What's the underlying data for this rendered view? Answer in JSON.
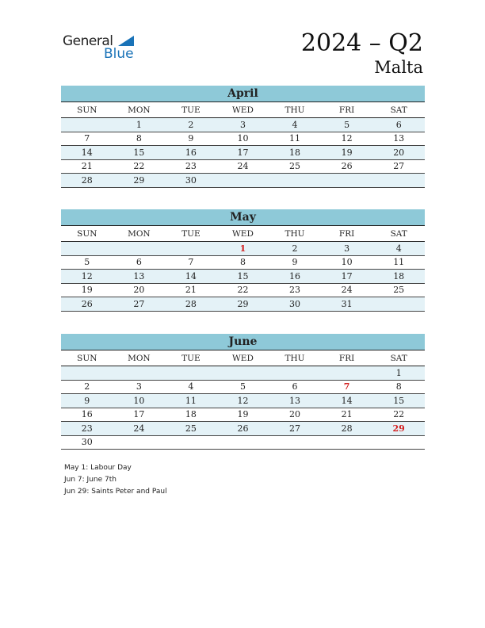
{
  "logo": {
    "line1": "General",
    "line2": "Blue"
  },
  "header": {
    "title": "2024 – Q2",
    "country": "Malta"
  },
  "weekdays": [
    "SUN",
    "MON",
    "TUE",
    "WED",
    "THU",
    "FRI",
    "SAT"
  ],
  "holiday_color": "#d32020",
  "months": [
    {
      "name": "April",
      "weeks": [
        [
          null,
          1,
          2,
          3,
          4,
          5,
          6
        ],
        [
          7,
          8,
          9,
          10,
          11,
          12,
          13
        ],
        [
          14,
          15,
          16,
          17,
          18,
          19,
          20
        ],
        [
          21,
          22,
          23,
          24,
          25,
          26,
          27
        ],
        [
          28,
          29,
          30,
          null,
          null,
          null,
          null
        ]
      ],
      "holidays": []
    },
    {
      "name": "May",
      "weeks": [
        [
          null,
          null,
          null,
          1,
          2,
          3,
          4
        ],
        [
          5,
          6,
          7,
          8,
          9,
          10,
          11
        ],
        [
          12,
          13,
          14,
          15,
          16,
          17,
          18
        ],
        [
          19,
          20,
          21,
          22,
          23,
          24,
          25
        ],
        [
          26,
          27,
          28,
          29,
          30,
          31,
          null
        ]
      ],
      "holidays": [
        1
      ]
    },
    {
      "name": "June",
      "weeks": [
        [
          null,
          null,
          null,
          null,
          null,
          null,
          1
        ],
        [
          2,
          3,
          4,
          5,
          6,
          7,
          8
        ],
        [
          9,
          10,
          11,
          12,
          13,
          14,
          15
        ],
        [
          16,
          17,
          18,
          19,
          20,
          21,
          22
        ],
        [
          23,
          24,
          25,
          26,
          27,
          28,
          29
        ],
        [
          30,
          null,
          null,
          null,
          null,
          null,
          null
        ]
      ],
      "holidays": [
        7,
        29
      ]
    }
  ],
  "notes": [
    "May 1: Labour Day",
    "Jun 7: June 7th",
    "Jun 29: Saints Peter and Paul"
  ]
}
